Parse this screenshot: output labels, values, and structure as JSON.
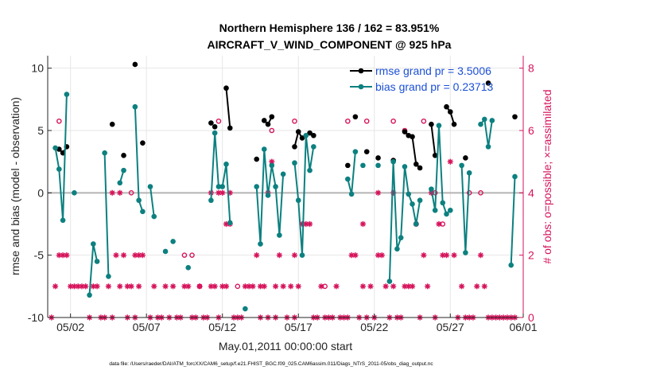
{
  "chart_data": {
    "type": "line",
    "title": "Northern Hemisphere 136 / 162 = 83.951%",
    "subtitle": "AIRCRAFT_V_WIND_COMPONENT @ 925 hPa",
    "xlabel": "May.01,2011 00:00:00 start",
    "ylabel_left": "rmse and bias (model - observation)",
    "ylabel_right": "# of obs: o=possible; ×=assimilated",
    "footer": "data file: /Users/raeder/DAI/ATM_forcXX/CAM6_setup/f.e21.FHIST_BGC.f09_025.CAM6assim.011/Diags_NTrS_2011-05/obs_diag_output.nc",
    "xlim": [
      0.5,
      31.8
    ],
    "ylim_left": [
      -10,
      11
    ],
    "ylim_right": [
      0,
      8.4
    ],
    "grid": true,
    "legend_position": "top-right",
    "x_ticks": [
      {
        "value": 2,
        "label": "05/02"
      },
      {
        "value": 7,
        "label": "05/07"
      },
      {
        "value": 12,
        "label": "05/12"
      },
      {
        "value": 17,
        "label": "05/17"
      },
      {
        "value": 22,
        "label": "05/22"
      },
      {
        "value": 27,
        "label": "05/27"
      },
      {
        "value": 32,
        "label": "06/01"
      }
    ],
    "y_ticks_left": [
      {
        "value": -10,
        "label": "-10"
      },
      {
        "value": -5,
        "label": "-5"
      },
      {
        "value": 0,
        "label": "0"
      },
      {
        "value": 5,
        "label": "5"
      },
      {
        "value": 10,
        "label": "10"
      }
    ],
    "y_ticks_right": [
      {
        "value": 0,
        "label": "0"
      },
      {
        "value": 2,
        "label": "2"
      },
      {
        "value": 4,
        "label": "4"
      },
      {
        "value": 6,
        "label": "6"
      },
      {
        "value": 8,
        "label": "8"
      }
    ],
    "colors": {
      "rmse": "#000000",
      "bias": "#0d8080",
      "obs": "#d6135b",
      "zero_line": "#b4b4b4",
      "grid": "#e6e6e6",
      "legend_text": "#1a4fd6"
    },
    "legend": [
      {
        "label": "rmse grand pr = 3.5006",
        "series": "rmse"
      },
      {
        "label": "bias grand pr = 0.23713",
        "series": "bias"
      }
    ],
    "series": [
      {
        "name": "rmse",
        "segments": [
          [
            [
              1.25,
              3.5
            ],
            [
              1.5,
              3.2
            ],
            [
              1.75,
              3.7
            ]
          ],
          [
            [
              4.75,
              5.5
            ]
          ],
          [
            [
              5.5,
              3.0
            ]
          ],
          [
            [
              6.25,
              10.3
            ]
          ],
          [
            [
              6.75,
              4.0
            ]
          ],
          [
            [
              11.25,
              5.6
            ]
          ],
          [
            [
              11.5,
              5.3
            ]
          ],
          [
            [
              12.25,
              8.4
            ],
            [
              12.5,
              5.2
            ]
          ],
          [
            [
              14.25,
              2.7
            ]
          ],
          [
            [
              14.75,
              5.8
            ],
            [
              15.0,
              5.5
            ],
            [
              15.25,
              6.1
            ]
          ],
          [
            [
              16.75,
              3.7
            ],
            [
              17.0,
              4.9
            ],
            [
              17.25,
              4.4
            ]
          ],
          [
            [
              17.75,
              4.8
            ],
            [
              18.0,
              4.6
            ]
          ],
          [
            [
              20.25,
              2.2
            ]
          ],
          [
            [
              20.75,
              6.1
            ]
          ],
          [
            [
              21.5,
              3.3
            ]
          ],
          [
            [
              22.25,
              2.8
            ]
          ],
          [
            [
              23.25,
              2.6
            ]
          ],
          [
            [
              24.0,
              4.9
            ],
            [
              24.25,
              4.6
            ],
            [
              24.5,
              4.5
            ],
            [
              24.75,
              2.3
            ],
            [
              25.0,
              2.0
            ]
          ],
          [
            [
              25.75,
              5.5
            ],
            [
              26.0,
              3.0
            ]
          ],
          [
            [
              26.75,
              6.9
            ],
            [
              27.0,
              6.5
            ],
            [
              27.25,
              5.5
            ]
          ],
          [
            [
              28.0,
              2.8
            ]
          ],
          [
            [
              29.5,
              8.8
            ]
          ],
          [
            [
              31.25,
              6.1
            ]
          ]
        ]
      },
      {
        "name": "bias",
        "segments": [
          [
            [
              1.0,
              3.6
            ],
            [
              1.25,
              1.9
            ],
            [
              1.5,
              -2.2
            ],
            [
              1.75,
              7.9
            ]
          ],
          [
            [
              2.25,
              0.0
            ]
          ],
          [
            [
              3.25,
              -8.2
            ],
            [
              3.5,
              -4.1
            ],
            [
              3.75,
              -5.5
            ]
          ],
          [
            [
              4.25,
              3.2
            ],
            [
              4.5,
              -6.7
            ]
          ],
          [
            [
              5.25,
              0.8
            ],
            [
              5.5,
              1.8
            ]
          ],
          [
            [
              6.25,
              6.9
            ],
            [
              6.5,
              -0.6
            ],
            [
              6.75,
              -1.5
            ]
          ],
          [
            [
              7.25,
              0.5
            ],
            [
              7.5,
              -1.9
            ]
          ],
          [
            [
              8.25,
              -4.7
            ]
          ],
          [
            [
              8.75,
              -3.9
            ]
          ],
          [
            [
              9.75,
              -6.0
            ]
          ],
          [
            [
              11.25,
              -0.6
            ],
            [
              11.5,
              4.8
            ],
            [
              11.75,
              0.5
            ],
            [
              12.0,
              0.5
            ],
            [
              12.25,
              2.3
            ],
            [
              12.5,
              -2.4
            ]
          ],
          [
            [
              13.5,
              -9.3
            ]
          ],
          [
            [
              14.25,
              0.5
            ],
            [
              14.5,
              -4.1
            ],
            [
              14.75,
              3.5
            ],
            [
              15.0,
              -0.2
            ],
            [
              15.25,
              2.2
            ],
            [
              15.5,
              0.5
            ],
            [
              15.75,
              -3.4
            ],
            [
              16.0,
              1.5
            ]
          ],
          [
            [
              16.75,
              2.4
            ],
            [
              17.0,
              -0.6
            ],
            [
              17.25,
              -5.0
            ],
            [
              17.5,
              4.6
            ],
            [
              17.75,
              1.8
            ],
            [
              18.0,
              3.7
            ]
          ],
          [
            [
              20.25,
              1.1
            ],
            [
              20.5,
              -0.1
            ],
            [
              20.75,
              3.3
            ]
          ],
          [
            [
              21.25,
              2.2
            ]
          ],
          [
            [
              22.25,
              2.2
            ]
          ],
          [
            [
              23.0,
              -7.1
            ],
            [
              23.25,
              2.5
            ],
            [
              23.5,
              -4.5
            ],
            [
              23.75,
              -3.6
            ],
            [
              24.0,
              2.1
            ],
            [
              24.25,
              -0.1
            ],
            [
              24.5,
              -0.9
            ],
            [
              24.75,
              -2.5
            ],
            [
              25.0,
              -0.6
            ]
          ],
          [
            [
              25.75,
              0.3
            ],
            [
              26.0,
              -1.4
            ],
            [
              26.25,
              5.4
            ],
            [
              26.5,
              -0.8
            ],
            [
              26.75,
              -1.7
            ],
            [
              27.0,
              -1.4
            ]
          ],
          [
            [
              27.75,
              2.2
            ],
            [
              28.0,
              -4.8
            ],
            [
              28.25,
              1.6
            ]
          ],
          [
            [
              29.0,
              5.5
            ],
            [
              29.25,
              5.9
            ],
            [
              29.5,
              3.7
            ],
            [
              29.75,
              5.8
            ]
          ],
          [
            [
              31.0,
              -5.8
            ],
            [
              31.25,
              1.3
            ]
          ]
        ]
      }
    ],
    "obs_possible": [
      [
        1.25,
        6.3
      ],
      [
        6.0,
        4.0
      ],
      [
        9.5,
        2.0
      ],
      [
        10.0,
        2.0
      ],
      [
        10.5,
        1.0
      ],
      [
        11.75,
        6.3
      ],
      [
        13.0,
        1.0
      ],
      [
        15.25,
        6.0
      ],
      [
        16.75,
        6.3
      ],
      [
        18.75,
        1.0
      ],
      [
        20.25,
        6.3
      ],
      [
        21.5,
        6.3
      ],
      [
        23.25,
        6.3
      ],
      [
        24.0,
        6.0
      ],
      [
        25.25,
        6.3
      ],
      [
        26.0,
        4.0
      ],
      [
        26.5,
        3.0
      ],
      [
        28.25,
        4.0
      ],
      [
        29.0,
        4.0
      ]
    ],
    "obs_assimilated": [
      [
        0.75,
        0.0
      ],
      [
        1.0,
        1.0
      ],
      [
        1.25,
        2.0
      ],
      [
        1.5,
        2.0
      ],
      [
        1.75,
        2.0
      ],
      [
        2.0,
        1.0
      ],
      [
        2.25,
        1.0
      ],
      [
        2.5,
        1.0
      ],
      [
        2.75,
        1.0
      ],
      [
        3.0,
        1.0
      ],
      [
        3.25,
        0.0
      ],
      [
        3.5,
        1.0
      ],
      [
        3.75,
        1.0
      ],
      [
        4.0,
        0.0
      ],
      [
        4.25,
        0.0
      ],
      [
        4.5,
        1.0
      ],
      [
        4.75,
        0.0
      ],
      [
        4.75,
        4.0
      ],
      [
        5.0,
        2.0
      ],
      [
        5.25,
        1.0
      ],
      [
        5.25,
        4.0
      ],
      [
        5.5,
        2.0
      ],
      [
        5.75,
        1.0
      ],
      [
        5.75,
        0.0
      ],
      [
        6.0,
        1.0
      ],
      [
        6.25,
        0.0
      ],
      [
        6.25,
        2.0
      ],
      [
        6.5,
        1.0
      ],
      [
        6.5,
        2.0
      ],
      [
        6.75,
        2.0
      ],
      [
        7.25,
        0.0
      ],
      [
        7.5,
        1.0
      ],
      [
        7.75,
        0.0
      ],
      [
        8.0,
        0.0
      ],
      [
        8.25,
        1.0
      ],
      [
        8.5,
        0.0
      ],
      [
        8.75,
        1.0
      ],
      [
        9.0,
        0.0
      ],
      [
        9.25,
        0.0
      ],
      [
        9.5,
        1.0
      ],
      [
        9.75,
        1.0
      ],
      [
        10.0,
        0.0
      ],
      [
        10.25,
        0.0
      ],
      [
        10.5,
        1.0
      ],
      [
        10.75,
        0.0
      ],
      [
        11.0,
        0.0
      ],
      [
        11.25,
        1.0
      ],
      [
        11.25,
        4.0
      ],
      [
        11.5,
        1.0
      ],
      [
        11.75,
        0.0
      ],
      [
        11.75,
        4.0
      ],
      [
        12.0,
        1.0
      ],
      [
        12.0,
        4.0
      ],
      [
        12.25,
        3.0
      ],
      [
        12.25,
        1.0
      ],
      [
        12.5,
        3.0
      ],
      [
        12.5,
        4.0
      ],
      [
        12.75,
        0.0
      ],
      [
        13.0,
        0.0
      ],
      [
        13.25,
        0.0
      ],
      [
        13.5,
        1.0
      ],
      [
        13.75,
        1.0
      ],
      [
        14.0,
        1.0
      ],
      [
        14.25,
        2.0
      ],
      [
        14.5,
        1.0
      ],
      [
        14.5,
        0.0
      ],
      [
        14.75,
        1.0
      ],
      [
        15.0,
        0.0
      ],
      [
        15.0,
        4.0
      ],
      [
        15.25,
        5.0
      ],
      [
        15.5,
        1.0
      ],
      [
        15.5,
        0.0
      ],
      [
        15.75,
        2.0
      ],
      [
        16.0,
        1.0
      ],
      [
        16.25,
        0.0
      ],
      [
        16.5,
        1.0
      ],
      [
        16.75,
        0.0
      ],
      [
        16.75,
        2.0
      ],
      [
        17.0,
        1.0
      ],
      [
        17.25,
        3.0
      ],
      [
        17.5,
        3.0
      ],
      [
        17.75,
        3.0
      ],
      [
        18.0,
        0.0
      ],
      [
        18.25,
        0.0
      ],
      [
        18.5,
        1.0
      ],
      [
        18.75,
        0.0
      ],
      [
        19.0,
        0.0
      ],
      [
        19.25,
        0.0
      ],
      [
        19.5,
        1.0
      ],
      [
        19.75,
        0.0
      ],
      [
        20.0,
        0.0
      ],
      [
        20.25,
        0.0
      ],
      [
        20.5,
        2.0
      ],
      [
        20.75,
        2.0
      ],
      [
        21.0,
        0.0
      ],
      [
        21.25,
        1.0
      ],
      [
        21.25,
        3.0
      ],
      [
        21.5,
        0.0
      ],
      [
        21.75,
        1.0
      ],
      [
        22.0,
        0.0
      ],
      [
        22.25,
        2.0
      ],
      [
        22.25,
        4.0
      ],
      [
        22.5,
        2.0
      ],
      [
        22.75,
        1.0
      ],
      [
        23.0,
        0.0
      ],
      [
        23.25,
        1.0
      ],
      [
        23.25,
        4.0
      ],
      [
        23.5,
        0.0
      ],
      [
        23.75,
        0.0
      ],
      [
        24.0,
        1.0
      ],
      [
        24.25,
        1.0
      ],
      [
        24.5,
        1.0
      ],
      [
        24.75,
        3.0
      ],
      [
        25.0,
        0.0
      ],
      [
        25.25,
        2.0
      ],
      [
        25.5,
        1.0
      ],
      [
        25.75,
        4.0
      ],
      [
        26.0,
        0.0
      ],
      [
        26.25,
        3.0
      ],
      [
        26.5,
        2.0
      ],
      [
        26.75,
        2.0
      ],
      [
        27.0,
        5.0
      ],
      [
        27.25,
        2.0
      ],
      [
        27.5,
        0.0
      ],
      [
        27.75,
        1.0
      ],
      [
        28.0,
        0.0
      ],
      [
        28.25,
        0.0
      ],
      [
        28.5,
        0.0
      ],
      [
        28.75,
        1.0
      ],
      [
        29.0,
        2.0
      ],
      [
        29.25,
        1.0
      ],
      [
        29.5,
        0.0
      ],
      [
        29.75,
        0.0
      ],
      [
        30.0,
        0.0
      ],
      [
        30.25,
        0.0
      ],
      [
        30.5,
        0.0
      ],
      [
        30.75,
        0.0
      ],
      [
        31.0,
        0.0
      ],
      [
        31.25,
        0.0
      ]
    ]
  }
}
